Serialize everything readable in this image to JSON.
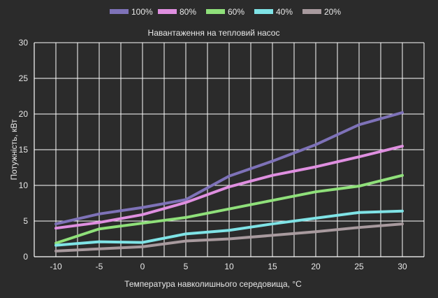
{
  "chart_data": {
    "type": "line",
    "title": "Навантаження на тепловий насос",
    "xlabel": "Температура навколишнього середовища, °C",
    "ylabel": "Потужність, кВт",
    "x": [
      -10,
      -5,
      0,
      5,
      10,
      15,
      20,
      25,
      30
    ],
    "xticks": [
      "-10",
      "-5",
      "0",
      "5",
      "10",
      "15",
      "20",
      "25",
      "30"
    ],
    "yticks": [
      "0",
      "5",
      "10",
      "15",
      "20",
      "25",
      "30"
    ],
    "xlim": [
      -12.5,
      32.5
    ],
    "ylim": [
      0,
      30
    ],
    "grid": true,
    "legend_position": "top-center",
    "series": [
      {
        "name": "100%",
        "color": "#7e72b8",
        "values": [
          4.6,
          6.0,
          6.9,
          8.0,
          11.3,
          13.4,
          15.7,
          18.5,
          20.2
        ]
      },
      {
        "name": "80%",
        "color": "#df8fe0",
        "values": [
          4.0,
          4.8,
          5.9,
          7.6,
          9.8,
          11.4,
          12.6,
          14.0,
          15.5
        ]
      },
      {
        "name": "60%",
        "color": "#8fe07a",
        "values": [
          1.9,
          3.9,
          4.7,
          5.5,
          6.7,
          7.9,
          9.1,
          9.9,
          11.4
        ]
      },
      {
        "name": "40%",
        "color": "#7fe3e6",
        "values": [
          1.6,
          2.1,
          2.0,
          3.2,
          3.7,
          4.6,
          5.4,
          6.2,
          6.4
        ]
      },
      {
        "name": "20%",
        "color": "#a89a9e",
        "values": [
          0.8,
          1.1,
          1.4,
          2.2,
          2.5,
          3.0,
          3.5,
          4.1,
          4.6
        ]
      }
    ]
  }
}
